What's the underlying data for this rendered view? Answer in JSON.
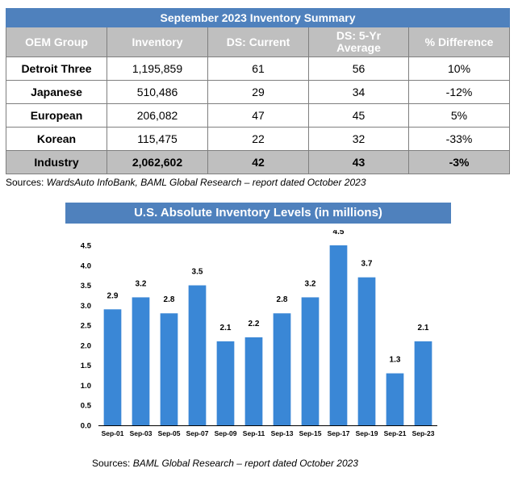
{
  "table": {
    "title": "September 2023 Inventory Summary",
    "headers": [
      "OEM Group",
      "Inventory",
      "DS: Current",
      "DS: 5-Yr Average",
      "% Difference"
    ],
    "rows": [
      [
        "Detroit Three",
        "1,195,859",
        "61",
        "56",
        "10%"
      ],
      [
        "Japanese",
        "510,486",
        "29",
        "34",
        "-12%"
      ],
      [
        "European",
        "206,082",
        "47",
        "45",
        "5%"
      ],
      [
        "Korean",
        "115,475",
        "22",
        "32",
        "-33%"
      ]
    ],
    "total": [
      "Industry",
      "2,062,602",
      "42",
      "43",
      "-3%"
    ],
    "source_prefix": "Sources: ",
    "source_text": "WardsAuto InfoBank, BAML Global Research – report dated October 2023"
  },
  "chart_title": "U.S. Absolute Inventory Levels (in millions)",
  "chart_source_prefix": "Sources: ",
  "chart_source_text": "BAML Global Research – report dated October 2023",
  "colors": {
    "header_blue": "#4f81bd",
    "header_gray": "#bfbfbf",
    "bar": "#3a87d6"
  },
  "chart_data": {
    "type": "bar",
    "title": "U.S. Absolute Inventory Levels (in millions)",
    "categories": [
      "Sep-01",
      "Sep-03",
      "Sep-05",
      "Sep-07",
      "Sep-09",
      "Sep-11",
      "Sep-13",
      "Sep-15",
      "Sep-17",
      "Sep-19",
      "Sep-21",
      "Sep-23"
    ],
    "values": [
      2.9,
      3.2,
      2.8,
      3.5,
      2.1,
      2.2,
      2.8,
      3.2,
      4.5,
      3.7,
      1.3,
      2.1
    ],
    "data_labels": [
      "2.9",
      "3.2",
      "2.8",
      "3.5",
      "2.1",
      "2.2",
      "2.8",
      "3.2",
      "4.5",
      "3.7",
      "1.3",
      "2.1"
    ],
    "yticks": [
      "0.0",
      "0.5",
      "1.0",
      "1.5",
      "2.0",
      "2.5",
      "3.0",
      "3.5",
      "4.0",
      "4.5"
    ],
    "ylim": [
      0,
      4.5
    ],
    "xlabel": "",
    "ylabel": "",
    "grid": false,
    "legend": "none"
  }
}
